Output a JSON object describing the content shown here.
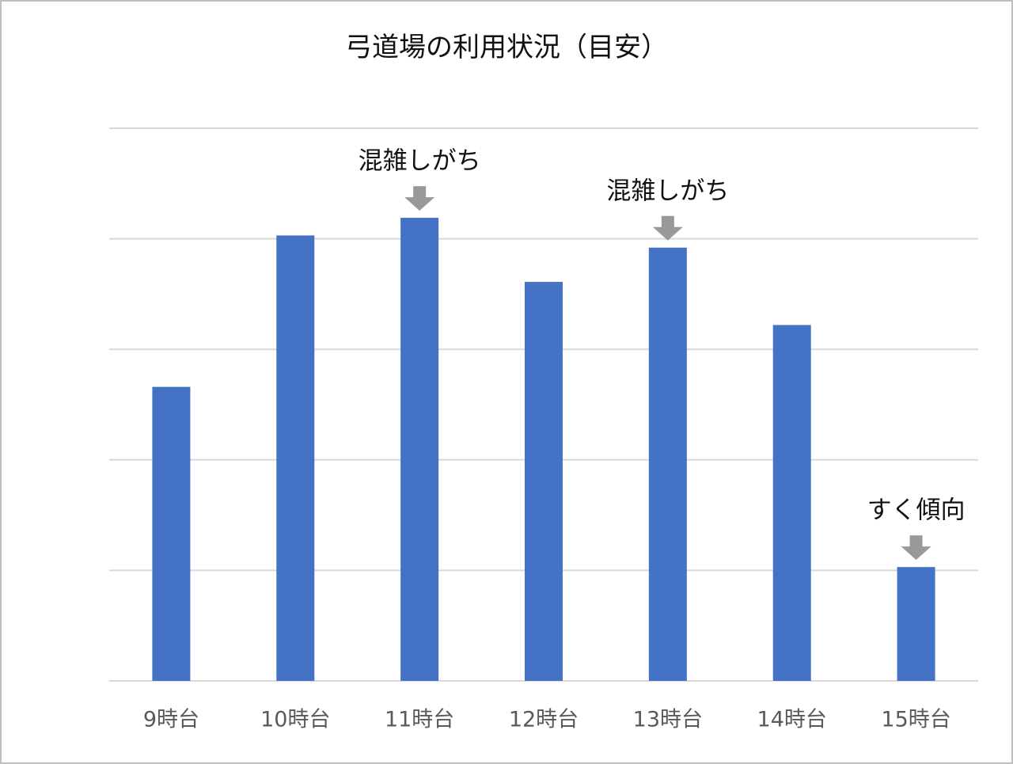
{
  "chart_data": {
    "type": "bar",
    "title": "弓道場の利用状況（目安）",
    "categories": [
      "9時台",
      "10時台",
      "11時台",
      "12時台",
      "13時台",
      "14時台",
      "15時台"
    ],
    "values": [
      2.66,
      4.03,
      4.19,
      3.61,
      3.92,
      3.22,
      1.03
    ],
    "color": "#4472c4",
    "ylim": [
      0,
      5
    ],
    "yticks": [
      0,
      1,
      2,
      3,
      4,
      5
    ],
    "grid": true,
    "annotations": [
      {
        "text": "混雑しがち",
        "at": "11時台"
      },
      {
        "text": "混雑しがち",
        "at": "13時台"
      },
      {
        "text": "すく傾向",
        "at": "15時台"
      }
    ]
  }
}
